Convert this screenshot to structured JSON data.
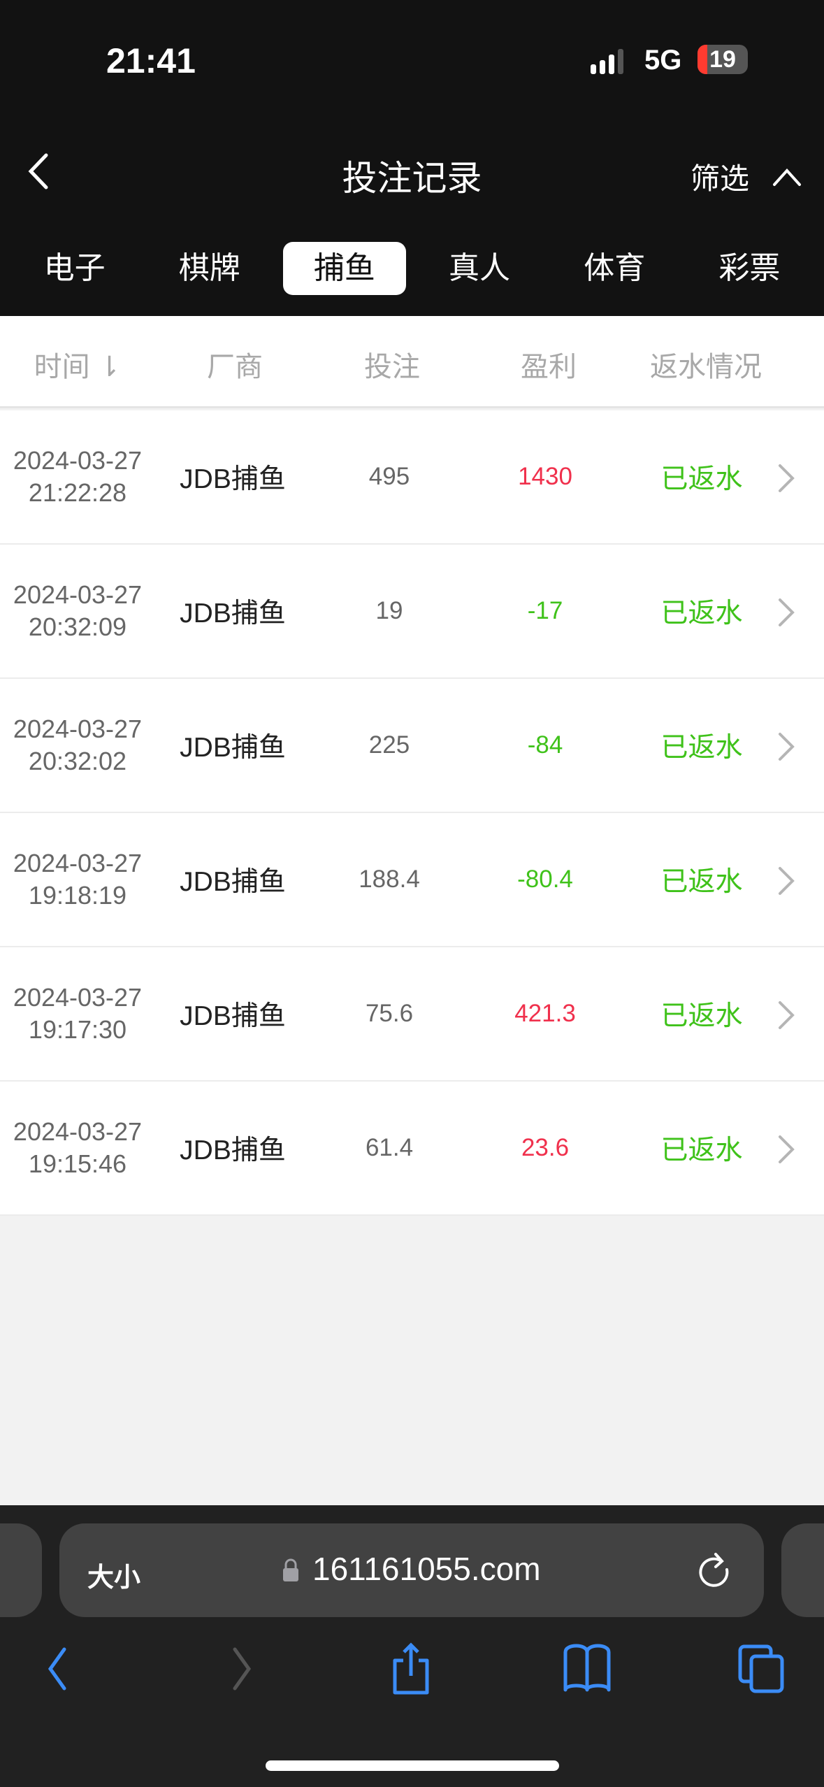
{
  "status_bar": {
    "time": "21:41",
    "network": "5G",
    "battery": "19"
  },
  "header": {
    "title": "投注记录",
    "filter_label": "筛选"
  },
  "tabs": [
    {
      "label": "电子"
    },
    {
      "label": "棋牌"
    },
    {
      "label": "捕鱼",
      "active": true
    },
    {
      "label": "真人"
    },
    {
      "label": "体育"
    },
    {
      "label": "彩票"
    }
  ],
  "table": {
    "columns": [
      "时间",
      "厂商",
      "投注",
      "盈利",
      "返水情况"
    ],
    "rows": [
      {
        "time": "2024-03-27 21:22:28",
        "vendor": "JDB捕鱼",
        "bet": "495",
        "profit": "1430",
        "status": "已返水"
      },
      {
        "time": "2024-03-27 20:32:09",
        "vendor": "JDB捕鱼",
        "bet": "19",
        "profit": "-17",
        "status": "已返水"
      },
      {
        "time": "2024-03-27 20:32:02",
        "vendor": "JDB捕鱼",
        "bet": "225",
        "profit": "-84",
        "status": "已返水"
      },
      {
        "time": "2024-03-27 19:18:19",
        "vendor": "JDB捕鱼",
        "bet": "188.4",
        "profit": "-80.4",
        "status": "已返水"
      },
      {
        "time": "2024-03-27 19:17:30",
        "vendor": "JDB捕鱼",
        "bet": "75.6",
        "profit": "421.3",
        "status": "已返水"
      },
      {
        "time": "2024-03-27 19:15:46",
        "vendor": "JDB捕鱼",
        "bet": "61.4",
        "profit": "23.6",
        "status": "已返水"
      }
    ]
  },
  "browser": {
    "text_size_label": "大小",
    "url": "161161055.com"
  },
  "colors": {
    "profit_positive": "#f0304c",
    "profit_negative": "#3fc21a",
    "status": "#3fc21a",
    "accent": "#3b8cf6"
  }
}
